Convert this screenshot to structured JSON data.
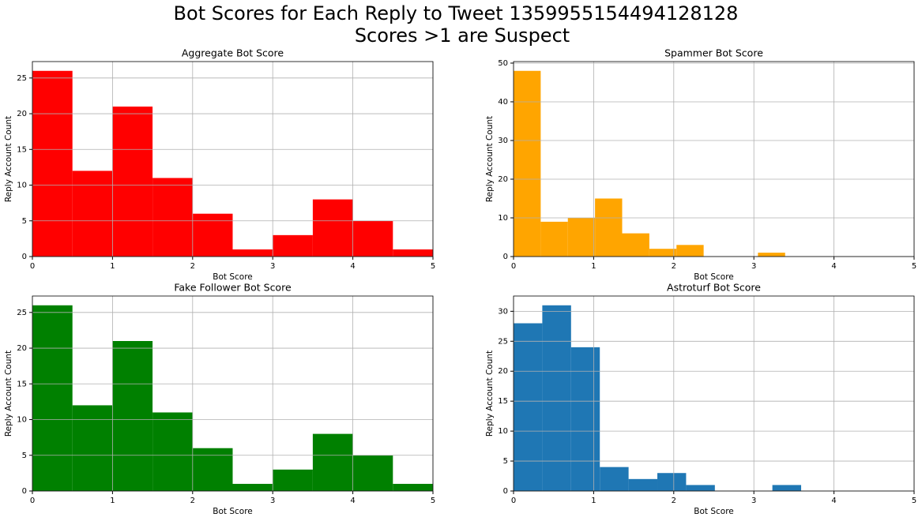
{
  "title": "Bot Scores for Each Reply to Tweet 1359955154494128128",
  "subtitle": "Scores >1 are Suspect",
  "chart_data": [
    {
      "type": "histogram",
      "title": "Aggregate Bot Score",
      "xlabel": "Bot Score",
      "ylabel": "Reply Account Count",
      "bins": [
        0,
        0.5,
        1,
        1.5,
        2,
        2.5,
        3,
        3.5,
        4,
        4.5,
        5
      ],
      "values": [
        26,
        12,
        21,
        11,
        6,
        1,
        3,
        8,
        5,
        1
      ],
      "color": "#ff0000",
      "xlim": [
        0,
        5
      ],
      "xticks": [
        0,
        1,
        2,
        3,
        4,
        5
      ],
      "ylim": [
        0,
        27.3
      ],
      "yticks": [
        0,
        5,
        10,
        15,
        20,
        25
      ],
      "grid": true
    },
    {
      "type": "histogram",
      "title": "Spammer Bot Score",
      "xlabel": "Bot Score",
      "ylabel": "Reply Account Count",
      "bins": [
        0,
        0.339,
        0.678,
        1.017,
        1.356,
        1.695,
        2.034,
        2.373,
        2.712,
        3.051,
        3.39
      ],
      "values": [
        48,
        9,
        10,
        15,
        6,
        2,
        3,
        0,
        0,
        1
      ],
      "color": "#ffa500",
      "xlim": [
        0,
        5
      ],
      "xticks": [
        0,
        1,
        2,
        3,
        4,
        5
      ],
      "ylim": [
        0,
        50.4
      ],
      "yticks": [
        0,
        10,
        20,
        30,
        40,
        50
      ],
      "grid": true
    },
    {
      "type": "histogram",
      "title": "Fake Follower Bot Score",
      "xlabel": "Bot Score",
      "ylabel": "Reply Account Count",
      "bins": [
        0,
        0.5,
        1,
        1.5,
        2,
        2.5,
        3,
        3.5,
        4,
        4.5,
        5
      ],
      "values": [
        26,
        12,
        21,
        11,
        6,
        1,
        3,
        8,
        5,
        1
      ],
      "color": "#008000",
      "xlim": [
        0,
        5
      ],
      "xticks": [
        0,
        1,
        2,
        3,
        4,
        5
      ],
      "ylim": [
        0,
        27.3
      ],
      "yticks": [
        0,
        5,
        10,
        15,
        20,
        25
      ],
      "grid": true
    },
    {
      "type": "histogram",
      "title": "Astroturf Bot Score",
      "xlabel": "Bot Score",
      "ylabel": "Reply Account Count",
      "bins": [
        0,
        0.359,
        0.718,
        1.077,
        1.436,
        1.795,
        2.154,
        2.513,
        2.872,
        3.231,
        3.59
      ],
      "values": [
        28,
        31,
        24,
        4,
        2,
        3,
        1,
        0,
        0,
        1
      ],
      "color": "#1f77b4",
      "xlim": [
        0,
        5
      ],
      "xticks": [
        0,
        1,
        2,
        3,
        4,
        5
      ],
      "ylim": [
        0,
        32.55
      ],
      "yticks": [
        0,
        5,
        10,
        15,
        20,
        25,
        30
      ],
      "grid": true
    }
  ]
}
